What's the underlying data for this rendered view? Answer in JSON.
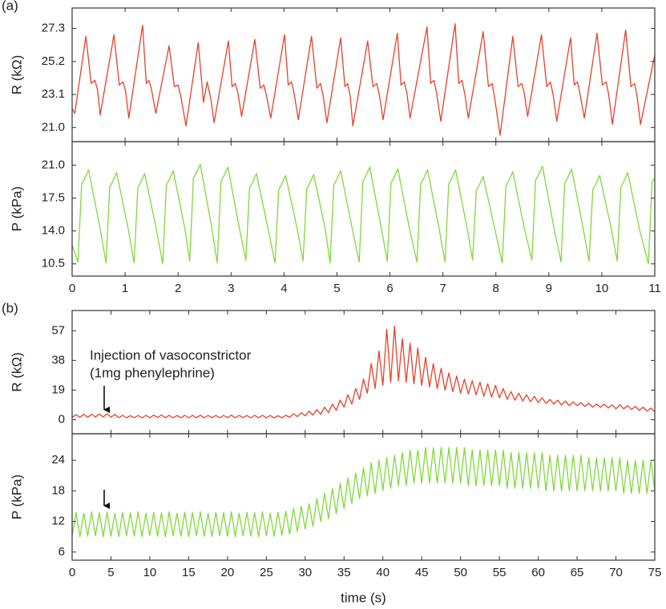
{
  "chart_data": [
    {
      "type": "line",
      "panel": "(a)",
      "ylabel": "R (kΩ)",
      "xlim": [
        0,
        11
      ],
      "ylim": [
        20.1,
        28.6
      ],
      "yticks": [
        {
          "value": 21,
          "label": "21.0"
        },
        23.1,
        25.2,
        27.3
      ],
      "x": [
        0,
        0.05,
        0.26,
        0.36,
        0.43,
        0.48,
        0.53,
        0.79,
        0.89,
        0.96,
        1.01,
        1.07,
        1.33,
        1.4,
        1.45,
        1.5,
        1.58,
        1.83,
        1.93,
        2,
        2.05,
        2.15,
        2.38,
        2.48,
        2.55,
        2.62,
        2.68,
        2.95,
        3.02,
        3.08,
        3.13,
        3.2,
        3.45,
        3.55,
        3.62,
        3.67,
        3.75,
        4.01,
        4.08,
        4.14,
        4.19,
        4.27,
        4.52,
        4.62,
        4.69,
        4.74,
        4.81,
        5.07,
        5.15,
        5.2,
        5.25,
        5.3,
        5.58,
        5.68,
        5.75,
        5.8,
        5.87,
        6.14,
        6.21,
        6.27,
        6.32,
        6.38,
        6.7,
        6.77,
        6.83,
        6.88,
        6.96,
        7.23,
        7.3,
        7.36,
        7.41,
        7.48,
        7.76,
        7.86,
        7.93,
        7.98,
        8.08,
        8.32,
        8.42,
        8.49,
        8.54,
        8.6,
        8.86,
        8.96,
        9.03,
        9.08,
        9.15,
        9.41,
        9.48,
        9.54,
        9.59,
        9.67,
        9.91,
        10.01,
        10.08,
        10.13,
        10.2,
        10.45,
        10.55,
        10.62,
        10.67,
        10.73,
        11
      ],
      "series": [
        {
          "color": "#e8402a",
          "values": [
            22.2,
            21.9,
            26.8,
            23.8,
            24,
            23.4,
            21.8,
            26.9,
            23.7,
            23.9,
            23.3,
            21.6,
            27.5,
            23.8,
            24,
            23.4,
            21.9,
            26.2,
            23.6,
            23.7,
            23,
            21.1,
            26.4,
            22.6,
            23.9,
            22.8,
            21.3,
            26.5,
            23.6,
            23.8,
            23.2,
            21.7,
            26.6,
            23.5,
            23.7,
            23,
            21.6,
            26.9,
            23.7,
            23.9,
            23.2,
            21.5,
            26.8,
            23.5,
            23.8,
            23,
            21.3,
            26.7,
            23.6,
            23.8,
            23,
            21.1,
            26.5,
            23.6,
            23.8,
            23.1,
            21.5,
            27,
            23.7,
            23.9,
            23.2,
            21.6,
            27.4,
            23.8,
            24,
            23.2,
            21.4,
            27.6,
            23.8,
            24,
            23.2,
            21.6,
            27.1,
            23.6,
            23.8,
            22.8,
            20.5,
            26.8,
            23.6,
            23.8,
            23.1,
            21.7,
            26.9,
            23.6,
            23.9,
            23.1,
            21.4,
            26.7,
            23.7,
            23.9,
            23.1,
            21.6,
            27,
            23.7,
            23.9,
            23.1,
            21.2,
            27.2,
            23.6,
            23.8,
            22.9,
            21.2,
            25.6
          ]
        }
      ]
    },
    {
      "type": "line",
      "ylabel": "P (kPa)",
      "xlim": [
        0,
        11
      ],
      "ylim": [
        9.2,
        23.5
      ],
      "yticks": [
        10.5,
        {
          "value": 14,
          "label": "14.0"
        },
        17.5,
        {
          "value": 21,
          "label": "21.0"
        }
      ],
      "xticks": [
        0,
        1,
        2,
        3,
        4,
        5,
        6,
        7,
        8,
        9,
        10,
        11
      ],
      "x": [
        0,
        0.11,
        0.18,
        0.23,
        0.31,
        0.53,
        0.64,
        0.71,
        0.76,
        0.84,
        1.06,
        1.17,
        1.24,
        1.29,
        1.37,
        1.59,
        1.71,
        1.78,
        1.83,
        1.91,
        2.13,
        2.22,
        2.29,
        2.34,
        2.42,
        2.64,
        2.74,
        2.81,
        2.86,
        2.94,
        3.16,
        3.28,
        3.35,
        3.4,
        3.48,
        3.7,
        3.83,
        3.9,
        3.95,
        4.03,
        4.25,
        4.36,
        4.43,
        4.48,
        4.56,
        4.78,
        4.87,
        4.94,
        4.99,
        5.07,
        5.29,
        5.42,
        5.49,
        5.54,
        5.62,
        5.84,
        5.95,
        6.02,
        6.07,
        6.15,
        6.37,
        6.51,
        6.58,
        6.63,
        6.71,
        6.93,
        7.04,
        7.11,
        7.16,
        7.24,
        7.46,
        7.56,
        7.63,
        7.68,
        7.76,
        7.98,
        8.12,
        8.19,
        8.24,
        8.32,
        8.54,
        8.68,
        8.75,
        8.8,
        8.88,
        9.1,
        9.23,
        9.3,
        9.35,
        9.43,
        9.65,
        9.76,
        9.83,
        9.88,
        9.96,
        10.18,
        10.29,
        10.36,
        10.41,
        10.49,
        10.71,
        10.88,
        10.95,
        11
      ],
      "series": [
        {
          "color": "#7fd93a",
          "values": [
            12.5,
            10.7,
            19,
            19.5,
            20.5,
            14.2,
            10.6,
            18.7,
            19.2,
            20.2,
            14.2,
            10.6,
            18.6,
            19.1,
            20.1,
            14.2,
            10.5,
            18.9,
            19.4,
            20.4,
            14.2,
            10.8,
            19.6,
            20.1,
            21.1,
            14.2,
            10.6,
            19.3,
            19.8,
            20.8,
            14.2,
            10.9,
            18.6,
            19.1,
            20.1,
            14.2,
            10.6,
            18.4,
            18.9,
            19.9,
            14.2,
            10.8,
            18.5,
            19,
            20,
            14.2,
            10.6,
            18.9,
            19.4,
            20.4,
            14.2,
            10.7,
            19.3,
            19.8,
            20.8,
            14.2,
            10.8,
            19.1,
            19.6,
            20.6,
            14.2,
            10.7,
            19,
            19.5,
            20.5,
            14.2,
            10.7,
            19,
            19.5,
            20.5,
            14.2,
            10.9,
            18.3,
            18.8,
            19.8,
            14.2,
            10.6,
            18.8,
            19.3,
            20.3,
            14.2,
            10.9,
            19.4,
            19.9,
            20.9,
            14.2,
            10.7,
            19.1,
            19.6,
            20.6,
            14.2,
            10.8,
            18.4,
            18.9,
            19.9,
            14.2,
            10.8,
            18.7,
            19.2,
            20.2,
            14.2,
            10.5,
            19.3,
            19.6
          ]
        }
      ]
    },
    {
      "type": "line",
      "panel": "(b)",
      "ylabel": "R (kΩ)",
      "xlim": [
        0,
        75
      ],
      "ylim": [
        -9,
        70
      ],
      "yticks": [
        0,
        19,
        38,
        57
      ],
      "annotations": [
        "Injection of vasoconstrictor",
        "(1mg phenylephrine)"
      ],
      "x": [
        0,
        0.5,
        1,
        1.5,
        2,
        2.5,
        3,
        3.5,
        4,
        4.5,
        5,
        5.5,
        6,
        6.5,
        7,
        7.5,
        8,
        8.5,
        9,
        9.5,
        10,
        10.5,
        11,
        11.5,
        12,
        12.5,
        13,
        13.5,
        14,
        14.5,
        15,
        15.5,
        16,
        16.5,
        17,
        17.5,
        18,
        18.5,
        19,
        19.5,
        20,
        20.5,
        21,
        21.5,
        22,
        22.5,
        23,
        23.5,
        24,
        24.5,
        25,
        25.5,
        26,
        26.5,
        27,
        27.5,
        28,
        28.5,
        29,
        29.5,
        30,
        30.5,
        31,
        31.5,
        32,
        32.5,
        33,
        33.5,
        34,
        34.5,
        35,
        35.5,
        36,
        36.5,
        37,
        37.5,
        38,
        38.5,
        39,
        39.5,
        40,
        40.5,
        41,
        41.5,
        42,
        42.5,
        43,
        43.5,
        44,
        44.5,
        45,
        45.5,
        46,
        46.5,
        47,
        47.5,
        48,
        48.5,
        49,
        49.5,
        50,
        50.5,
        51,
        51.5,
        52,
        52.5,
        53,
        53.5,
        54,
        54.5,
        55,
        55.5,
        56,
        56.5,
        57,
        57.5,
        58,
        58.5,
        59,
        59.5,
        60,
        60.5,
        61,
        61.5,
        62,
        62.5,
        63,
        63.5,
        64,
        64.5,
        65,
        65.5,
        66,
        66.5,
        67,
        67.5,
        68,
        68.5,
        69,
        69.5,
        70,
        70.5,
        71,
        71.5,
        72,
        72.5,
        73,
        73.5,
        74,
        74.5,
        75
      ],
      "series": [
        {
          "color": "#e8402a",
          "values": [
            1.5,
            3.2,
            1.6,
            3.4,
            1.5,
            3.5,
            1.7,
            3.6,
            1.8,
            3.8,
            1.6,
            3.4,
            1.3,
            2.8,
            1.2,
            2.6,
            1.3,
            2.7,
            1.2,
            2.8,
            1.3,
            2.9,
            1.4,
            3,
            1.3,
            2.8,
            1.2,
            2.7,
            1.3,
            2.8,
            1.2,
            2.8,
            1.3,
            2.9,
            1.2,
            2.8,
            1.3,
            2.7,
            1.2,
            2.8,
            1.3,
            2.9,
            1.2,
            2.8,
            1.3,
            2.7,
            1.2,
            2.8,
            1.3,
            2.8,
            1.2,
            2.7,
            1.1,
            2.6,
            1.2,
            2.9,
            1.5,
            3.8,
            2,
            4.5,
            2.5,
            5.5,
            3,
            6.5,
            3.5,
            8,
            4.5,
            10,
            6,
            12.5,
            8,
            16,
            10,
            20,
            13,
            26,
            17,
            36,
            20,
            44,
            22,
            58,
            24,
            60,
            25,
            52,
            24,
            49,
            23,
            46,
            22,
            40,
            21,
            36,
            20,
            33,
            19,
            30,
            18,
            28,
            17,
            26,
            16.5,
            25,
            16,
            24,
            15,
            23,
            14.5,
            22,
            14,
            20,
            13,
            18,
            12.5,
            17,
            12,
            16,
            11.5,
            15,
            11,
            14,
            10.5,
            13,
            10,
            12.5,
            9.5,
            12,
            9,
            11.5,
            9,
            11,
            8.5,
            10.5,
            8,
            10,
            8,
            10,
            7.5,
            9.5,
            7,
            9.5,
            7,
            9,
            6.5,
            8.5,
            6,
            8,
            5.5,
            7.5,
            5
          ]
        }
      ]
    },
    {
      "type": "line",
      "ylabel": "P (kPa)",
      "xlabel": "time (s)",
      "xlim": [
        0,
        75
      ],
      "ylim": [
        4.4,
        29.2
      ],
      "yticks": [
        6,
        12,
        18,
        24
      ],
      "xticks": [
        0,
        5,
        10,
        15,
        20,
        25,
        30,
        35,
        40,
        45,
        50,
        55,
        60,
        65,
        70,
        75
      ],
      "x": [
        0,
        0.5,
        1,
        1.5,
        2,
        2.5,
        3,
        3.5,
        4,
        4.5,
        5,
        5.5,
        6,
        6.5,
        7,
        7.5,
        8,
        8.5,
        9,
        9.5,
        10,
        10.5,
        11,
        11.5,
        12,
        12.5,
        13,
        13.5,
        14,
        14.5,
        15,
        15.5,
        16,
        16.5,
        17,
        17.5,
        18,
        18.5,
        19,
        19.5,
        20,
        20.5,
        21,
        21.5,
        22,
        22.5,
        23,
        23.5,
        24,
        24.5,
        25,
        25.5,
        26,
        26.5,
        27,
        27.5,
        28,
        28.5,
        29,
        29.5,
        30,
        30.5,
        31,
        31.5,
        32,
        32.5,
        33,
        33.5,
        34,
        34.5,
        35,
        35.5,
        36,
        36.5,
        37,
        37.5,
        38,
        38.5,
        39,
        39.5,
        40,
        40.5,
        41,
        41.5,
        42,
        42.5,
        43,
        43.5,
        44,
        44.5,
        45,
        45.5,
        46,
        46.5,
        47,
        47.5,
        48,
        48.5,
        49,
        49.5,
        50,
        50.5,
        51,
        51.5,
        52,
        52.5,
        53,
        53.5,
        54,
        54.5,
        55,
        55.5,
        56,
        56.5,
        57,
        57.5,
        58,
        58.5,
        59,
        59.5,
        60,
        60.5,
        61,
        61.5,
        62,
        62.5,
        63,
        63.5,
        64,
        64.5,
        65,
        65.5,
        66,
        66.5,
        67,
        67.5,
        68,
        68.5,
        69,
        69.5,
        70,
        70.5,
        71,
        71.5,
        72,
        72.5,
        73,
        73.5,
        74,
        74.5,
        75
      ],
      "series": [
        {
          "color": "#7fd93a",
          "values": [
            9.2,
            13.8,
            9,
            13.6,
            9.1,
            13.9,
            9.2,
            13.7,
            9,
            13.8,
            9.1,
            13.6,
            9,
            13.8,
            9.2,
            13.7,
            9.1,
            13.9,
            9,
            13.6,
            9.2,
            13.8,
            9.1,
            13.7,
            9,
            13.9,
            9.2,
            13.6,
            9.1,
            13.8,
            9,
            13.7,
            9.2,
            13.9,
            9.1,
            13.6,
            9,
            13.8,
            9.2,
            13.7,
            9.1,
            13.9,
            9,
            13.6,
            9.2,
            13.8,
            9.1,
            13.7,
            9,
            13.9,
            9.2,
            13.6,
            9.1,
            13.8,
            9.3,
            14,
            9.5,
            14.5,
            10,
            15,
            10.5,
            15.5,
            11,
            16.5,
            12,
            17.5,
            12.5,
            18.5,
            13.5,
            19.5,
            14.5,
            20.5,
            15.5,
            21.5,
            16.5,
            22.5,
            17,
            23.5,
            17.5,
            24,
            18,
            24.5,
            18.5,
            25,
            19,
            25.5,
            19,
            26,
            19.5,
            26,
            19.5,
            26.5,
            19.5,
            26.5,
            19.5,
            26.5,
            19.5,
            26.5,
            19.5,
            26.5,
            19.5,
            26.5,
            19,
            26,
            19,
            26,
            19,
            26,
            19,
            26,
            19,
            26,
            18.5,
            25.5,
            18.5,
            25.5,
            18.5,
            25.5,
            18.5,
            25.5,
            18.5,
            25.5,
            18,
            25,
            18,
            25,
            18,
            25,
            18,
            25,
            18,
            25,
            18,
            24.5,
            18,
            24.5,
            18,
            24.5,
            18,
            24.5,
            18,
            24.5,
            17.5,
            24,
            17.5,
            24,
            17.5,
            24,
            17.5,
            24,
            18
          ]
        }
      ]
    }
  ]
}
